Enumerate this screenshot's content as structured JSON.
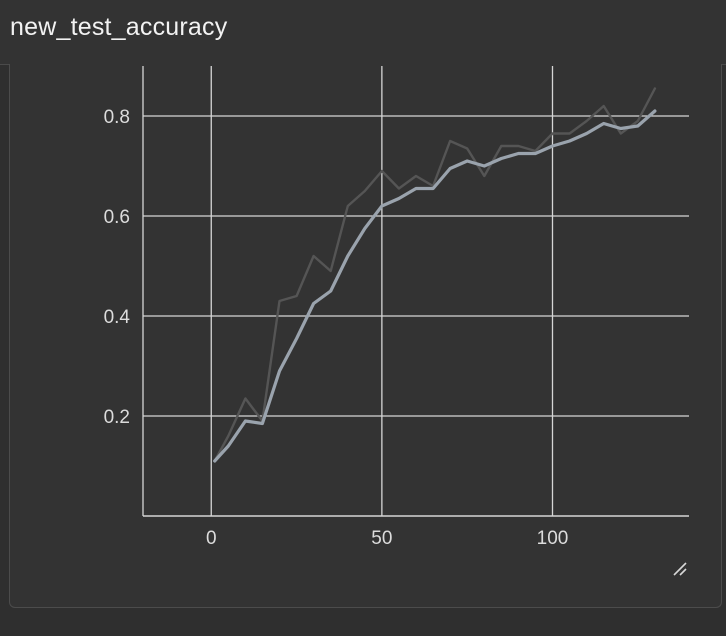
{
  "header": {
    "title": "new_test_accuracy"
  },
  "chart_data": {
    "type": "line",
    "title": "new_test_accuracy",
    "xlabel": "",
    "ylabel": "",
    "xlim": [
      -20,
      140
    ],
    "ylim": [
      0,
      0.9
    ],
    "x_ticks": [
      0,
      50,
      100
    ],
    "y_ticks": [
      0.2,
      0.4,
      0.6,
      0.8
    ],
    "x_tick_labels": [
      "0",
      "50",
      "100"
    ],
    "y_tick_labels": [
      "0.2",
      "0.4",
      "0.6",
      "0.8"
    ],
    "grid": true,
    "series": [
      {
        "role": "raw",
        "color": "#555555",
        "x": [
          1,
          5,
          10,
          15,
          20,
          25,
          30,
          35,
          40,
          45,
          50,
          55,
          60,
          65,
          70,
          75,
          80,
          85,
          90,
          95,
          100,
          105,
          110,
          115,
          120,
          125,
          130
        ],
        "y": [
          0.11,
          0.16,
          0.235,
          0.19,
          0.43,
          0.44,
          0.52,
          0.49,
          0.62,
          0.65,
          0.69,
          0.655,
          0.68,
          0.66,
          0.75,
          0.735,
          0.68,
          0.74,
          0.74,
          0.73,
          0.765,
          0.765,
          0.79,
          0.82,
          0.765,
          0.79,
          0.855
        ]
      },
      {
        "role": "smoothed",
        "color": "#9aa3ad",
        "x": [
          1,
          5,
          10,
          15,
          20,
          25,
          30,
          35,
          40,
          45,
          50,
          55,
          60,
          65,
          70,
          75,
          80,
          85,
          90,
          95,
          100,
          105,
          110,
          115,
          120,
          125,
          130
        ],
        "y": [
          0.11,
          0.14,
          0.19,
          0.185,
          0.29,
          0.355,
          0.425,
          0.45,
          0.52,
          0.575,
          0.62,
          0.635,
          0.655,
          0.655,
          0.695,
          0.71,
          0.7,
          0.715,
          0.725,
          0.725,
          0.74,
          0.75,
          0.765,
          0.785,
          0.775,
          0.78,
          0.81
        ]
      }
    ]
  }
}
